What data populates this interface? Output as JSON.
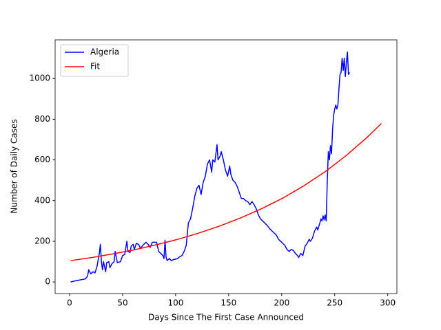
{
  "chart_data": {
    "type": "line",
    "x_label": "Days Since The First Case Announced",
    "y_label": "Number of Daily Cases",
    "xlim": [
      -13.65,
      308.65
    ],
    "ylim": [
      -57,
      1190
    ],
    "xticks": [
      0,
      50,
      100,
      150,
      200,
      250,
      300
    ],
    "yticks": [
      0,
      200,
      400,
      600,
      800,
      1000
    ],
    "grid": false,
    "legend": "upper left",
    "series": [
      {
        "name": "Algeria",
        "color": "#0000ff",
        "x": [
          1,
          5,
          10,
          15,
          17,
          18,
          20,
          22,
          24,
          26,
          28,
          29,
          30,
          31,
          32,
          34,
          35,
          37,
          38,
          40,
          42,
          43,
          45,
          48,
          50,
          52,
          54,
          55,
          57,
          58,
          60,
          61,
          63,
          65,
          67,
          69,
          72,
          74,
          76,
          78,
          82,
          84,
          86,
          88,
          89,
          90,
          91,
          92,
          94,
          96,
          98,
          102,
          104,
          106,
          108,
          110,
          112,
          114,
          116,
          118,
          120,
          122,
          124,
          126,
          128,
          130,
          132,
          134,
          135,
          137,
          139,
          140,
          142,
          143,
          145,
          147,
          149,
          151,
          152,
          154,
          156,
          158,
          160,
          162,
          164,
          166,
          168,
          170,
          172,
          174,
          176,
          178,
          180,
          183,
          186,
          189,
          192,
          195,
          197,
          200,
          203,
          205,
          207,
          209,
          211,
          213,
          215,
          216,
          218,
          220,
          222,
          224,
          226,
          227,
          229,
          231,
          233,
          234,
          236,
          237,
          238,
          239,
          240,
          241,
          242,
          243,
          244,
          245,
          246,
          247,
          248,
          249,
          250,
          251,
          252,
          253,
          254,
          255,
          256,
          257,
          258,
          259,
          260,
          261,
          262,
          263,
          264
        ],
        "values": [
          0,
          5,
          10,
          15,
          30,
          60,
          40,
          50,
          45,
          80,
          140,
          185,
          100,
          60,
          100,
          50,
          95,
          100,
          70,
          90,
          100,
          150,
          95,
          100,
          130,
          135,
          200,
          150,
          145,
          175,
          185,
          160,
          190,
          185,
          165,
          180,
          195,
          185,
          170,
          195,
          195,
          150,
          140,
          130,
          115,
          205,
          120,
          105,
          115,
          105,
          110,
          115,
          125,
          130,
          150,
          180,
          290,
          310,
          360,
          420,
          460,
          475,
          430,
          490,
          520,
          580,
          600,
          540,
          600,
          590,
          675,
          600,
          620,
          640,
          600,
          550,
          520,
          570,
          530,
          500,
          490,
          470,
          440,
          410,
          410,
          400,
          395,
          380,
          395,
          380,
          360,
          330,
          310,
          295,
          280,
          260,
          245,
          230,
          210,
          195,
          180,
          160,
          150,
          160,
          155,
          140,
          130,
          120,
          140,
          130,
          175,
          190,
          210,
          200,
          215,
          250,
          270,
          255,
          290,
          310,
          300,
          325,
          305,
          330,
          300,
          500,
          640,
          600,
          670,
          630,
          750,
          820,
          850,
          870,
          850,
          870,
          950,
          1020,
          1030,
          1100,
          1040,
          1100,
          1010,
          1080,
          1130,
          1020,
          1030
        ]
      },
      {
        "name": "Fit",
        "color": "#ff0000",
        "x": [
          1,
          21,
          41,
          61,
          81,
          101,
          121,
          141,
          161,
          181,
          201,
          221,
          241,
          261,
          281,
          294
        ],
        "values": [
          105,
          120,
          138,
          158,
          182,
          208,
          239,
          274,
          314,
          360,
          412,
          473,
          542,
          622,
          713,
          779
        ]
      }
    ]
  }
}
